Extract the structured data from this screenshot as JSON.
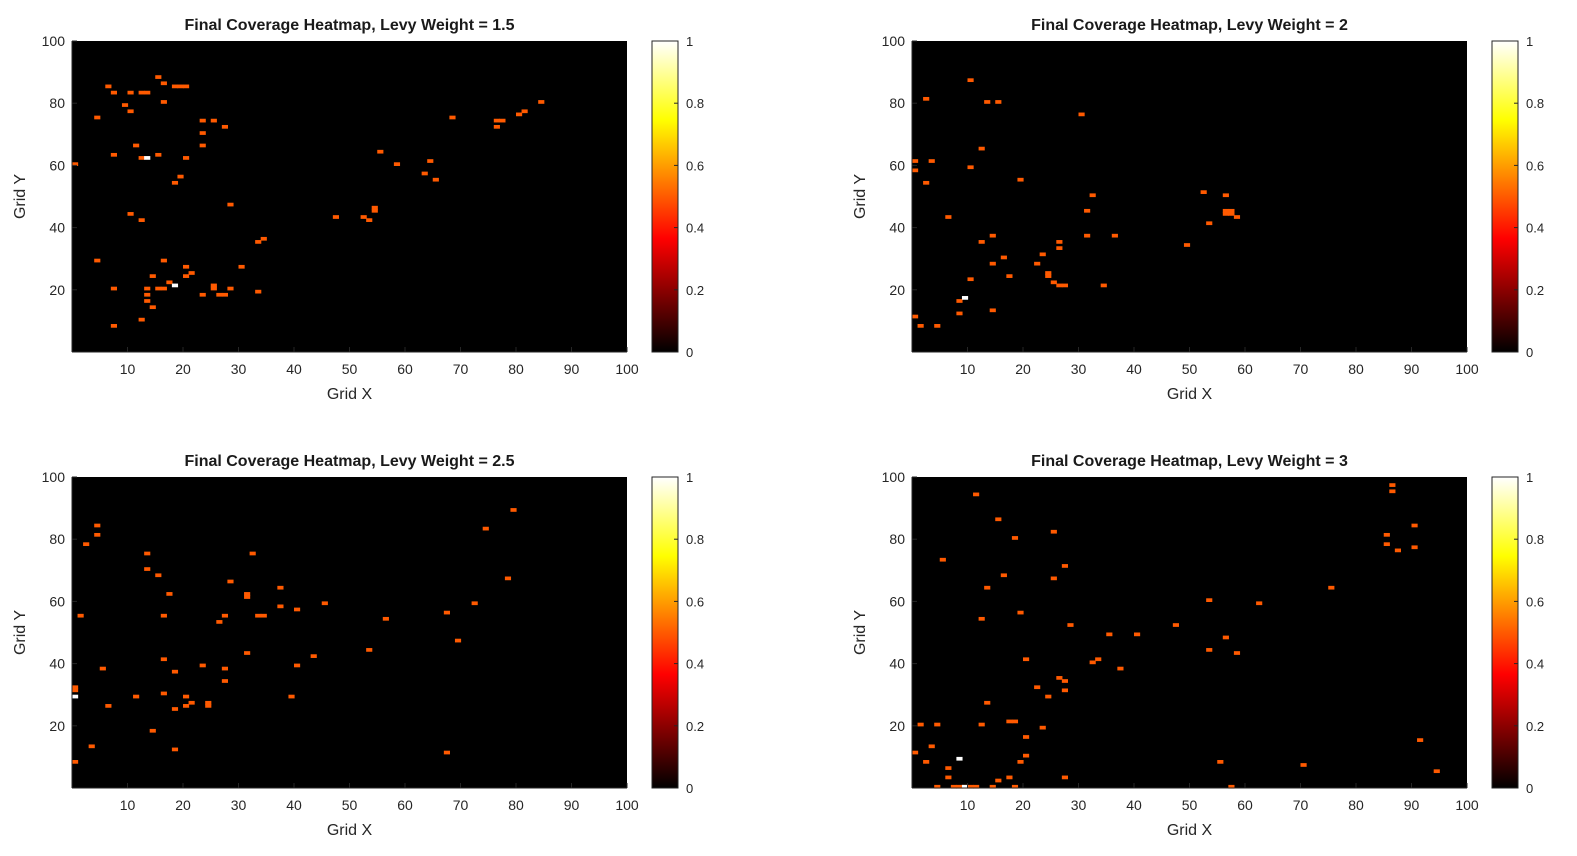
{
  "figure": {
    "colormap": "hot",
    "background": "#ffffff",
    "panel_bg": "#000000",
    "cell_color": "#ff5a00",
    "peak_color": "#ffffff"
  },
  "chart_data": [
    {
      "type": "heatmap",
      "title": "Final Coverage Heatmap, Levy Weight = 1.5",
      "xlabel": "Grid X",
      "ylabel": "Grid Y",
      "xlim": [
        0,
        100
      ],
      "ylim": [
        0,
        100
      ],
      "xticks": [
        "10",
        "20",
        "30",
        "40",
        "50",
        "60",
        "70",
        "80",
        "90",
        "100"
      ],
      "yticks": [
        "20",
        "40",
        "60",
        "80",
        "100"
      ],
      "colorbar": {
        "range": [
          0,
          1
        ],
        "ticks": [
          "0",
          "0.2",
          "0.4",
          "0.6",
          "0.8",
          "1"
        ]
      },
      "grid": false,
      "cells": [
        [
          7,
          86
        ],
        [
          8,
          84
        ],
        [
          10,
          80
        ],
        [
          11,
          84
        ],
        [
          11,
          78
        ],
        [
          13,
          84
        ],
        [
          14,
          84
        ],
        [
          16,
          89
        ],
        [
          17,
          87
        ],
        [
          17,
          81
        ],
        [
          19,
          86
        ],
        [
          20,
          86
        ],
        [
          21,
          86
        ],
        [
          5,
          76
        ],
        [
          1,
          61
        ],
        [
          8,
          64
        ],
        [
          12,
          67
        ],
        [
          13,
          63
        ],
        [
          16,
          64
        ],
        [
          19,
          55
        ],
        [
          20,
          57
        ],
        [
          21,
          63
        ],
        [
          24,
          75
        ],
        [
          24,
          71
        ],
        [
          24,
          67
        ],
        [
          26,
          75
        ],
        [
          28,
          73
        ],
        [
          29,
          48
        ],
        [
          11,
          45
        ],
        [
          13,
          43
        ],
        [
          5,
          30
        ],
        [
          8,
          21
        ],
        [
          8,
          9
        ],
        [
          13,
          11
        ],
        [
          14,
          21
        ],
        [
          14,
          19
        ],
        [
          14,
          17
        ],
        [
          15,
          25
        ],
        [
          15,
          15
        ],
        [
          16,
          21
        ],
        [
          17,
          30
        ],
        [
          17,
          21
        ],
        [
          18,
          23
        ],
        [
          21,
          28
        ],
        [
          21,
          25
        ],
        [
          22,
          26
        ],
        [
          24,
          19
        ],
        [
          26,
          22
        ],
        [
          26,
          21
        ],
        [
          27,
          19
        ],
        [
          28,
          19
        ],
        [
          29,
          21
        ],
        [
          31,
          28
        ],
        [
          34,
          36
        ],
        [
          35,
          37
        ],
        [
          34,
          20
        ],
        [
          48,
          44
        ],
        [
          53,
          44
        ],
        [
          54,
          43
        ],
        [
          55,
          46
        ],
        [
          55,
          47
        ],
        [
          56,
          65
        ],
        [
          59,
          61
        ],
        [
          64,
          58
        ],
        [
          65,
          62
        ],
        [
          66,
          56
        ],
        [
          69,
          76
        ],
        [
          77,
          75
        ],
        [
          78,
          75
        ],
        [
          77,
          73
        ],
        [
          81,
          77
        ],
        [
          82,
          78
        ],
        [
          85,
          81
        ]
      ],
      "peaks": [
        [
          14,
          63,
          1.0
        ],
        [
          19,
          22,
          1.0
        ]
      ]
    },
    {
      "type": "heatmap",
      "title": "Final Coverage Heatmap, Levy Weight = 2",
      "xlabel": "Grid X",
      "ylabel": "Grid Y",
      "xlim": [
        0,
        100
      ],
      "ylim": [
        0,
        100
      ],
      "xticks": [
        "10",
        "20",
        "30",
        "40",
        "50",
        "60",
        "70",
        "80",
        "90",
        "100"
      ],
      "yticks": [
        "20",
        "40",
        "60",
        "80",
        "100"
      ],
      "colorbar": {
        "range": [
          0,
          1
        ],
        "ticks": [
          "0",
          "0.2",
          "0.4",
          "0.6",
          "0.8",
          "1"
        ]
      },
      "grid": false,
      "cells": [
        [
          1,
          62
        ],
        [
          1,
          59
        ],
        [
          1,
          12
        ],
        [
          2,
          9
        ],
        [
          3,
          82
        ],
        [
          3,
          55
        ],
        [
          4,
          62
        ],
        [
          5,
          9
        ],
        [
          7,
          44
        ],
        [
          9,
          13
        ],
        [
          9,
          17
        ],
        [
          11,
          88
        ],
        [
          11,
          60
        ],
        [
          11,
          24
        ],
        [
          13,
          66
        ],
        [
          13,
          36
        ],
        [
          14,
          81
        ],
        [
          15,
          38
        ],
        [
          15,
          29
        ],
        [
          15,
          14
        ],
        [
          16,
          81
        ],
        [
          17,
          31
        ],
        [
          18,
          25
        ],
        [
          20,
          56
        ],
        [
          23,
          29
        ],
        [
          24,
          32
        ],
        [
          25,
          26
        ],
        [
          25,
          25
        ],
        [
          26,
          23
        ],
        [
          27,
          22
        ],
        [
          28,
          22
        ],
        [
          27,
          36
        ],
        [
          27,
          34
        ],
        [
          31,
          77
        ],
        [
          32,
          46
        ],
        [
          32,
          38
        ],
        [
          33,
          51
        ],
        [
          35,
          22
        ],
        [
          37,
          38
        ],
        [
          50,
          35
        ],
        [
          53,
          52
        ],
        [
          54,
          42
        ],
        [
          57,
          51
        ],
        [
          57,
          46
        ],
        [
          57,
          45
        ],
        [
          58,
          46
        ],
        [
          58,
          45
        ],
        [
          59,
          44
        ]
      ],
      "peaks": [
        [
          10,
          18,
          1.0
        ]
      ]
    },
    {
      "type": "heatmap",
      "title": "Final Coverage Heatmap, Levy Weight = 2.5",
      "xlabel": "Grid X",
      "ylabel": "Grid Y",
      "xlim": [
        0,
        100
      ],
      "ylim": [
        0,
        100
      ],
      "xticks": [
        "10",
        "20",
        "30",
        "40",
        "50",
        "60",
        "70",
        "80",
        "90",
        "100"
      ],
      "yticks": [
        "20",
        "40",
        "60",
        "80",
        "100"
      ],
      "colorbar": {
        "range": [
          0,
          1
        ],
        "ticks": [
          "0",
          "0.2",
          "0.4",
          "0.6",
          "0.8",
          "1"
        ]
      },
      "grid": false,
      "cells": [
        [
          1,
          33
        ],
        [
          1,
          32
        ],
        [
          1,
          9
        ],
        [
          2,
          56
        ],
        [
          3,
          79
        ],
        [
          4,
          14
        ],
        [
          5,
          85
        ],
        [
          5,
          82
        ],
        [
          6,
          39
        ],
        [
          7,
          27
        ],
        [
          12,
          30
        ],
        [
          14,
          76
        ],
        [
          14,
          71
        ],
        [
          15,
          19
        ],
        [
          16,
          69
        ],
        [
          17,
          56
        ],
        [
          17,
          42
        ],
        [
          17,
          31
        ],
        [
          18,
          63
        ],
        [
          19,
          38
        ],
        [
          19,
          26
        ],
        [
          19,
          13
        ],
        [
          21,
          30
        ],
        [
          21,
          27
        ],
        [
          22,
          28
        ],
        [
          24,
          40
        ],
        [
          25,
          28
        ],
        [
          25,
          27
        ],
        [
          27,
          54
        ],
        [
          28,
          56
        ],
        [
          28,
          39
        ],
        [
          28,
          35
        ],
        [
          29,
          67
        ],
        [
          32,
          63
        ],
        [
          32,
          62
        ],
        [
          32,
          44
        ],
        [
          33,
          76
        ],
        [
          34,
          56
        ],
        [
          35,
          56
        ],
        [
          38,
          65
        ],
        [
          38,
          59
        ],
        [
          40,
          30
        ],
        [
          41,
          58
        ],
        [
          41,
          40
        ],
        [
          44,
          43
        ],
        [
          46,
          60
        ],
        [
          54,
          45
        ],
        [
          57,
          55
        ],
        [
          68,
          57
        ],
        [
          68,
          12
        ],
        [
          70,
          48
        ],
        [
          73,
          60
        ],
        [
          75,
          84
        ],
        [
          79,
          68
        ],
        [
          80,
          90
        ]
      ],
      "peaks": [
        [
          1,
          30,
          1.0
        ]
      ]
    },
    {
      "type": "heatmap",
      "title": "Final Coverage Heatmap, Levy Weight = 3",
      "xlabel": "Grid X",
      "ylabel": "Grid Y",
      "xlim": [
        0,
        100
      ],
      "ylim": [
        0,
        100
      ],
      "xticks": [
        "10",
        "20",
        "30",
        "40",
        "50",
        "60",
        "70",
        "80",
        "90",
        "100"
      ],
      "yticks": [
        "20",
        "40",
        "60",
        "80",
        "100"
      ],
      "colorbar": {
        "range": [
          0,
          1
        ],
        "ticks": [
          "0",
          "0.2",
          "0.4",
          "0.6",
          "0.8",
          "1"
        ]
      },
      "grid": false,
      "cells": [
        [
          1,
          12
        ],
        [
          2,
          21
        ],
        [
          3,
          9
        ],
        [
          4,
          14
        ],
        [
          5,
          21
        ],
        [
          5,
          1
        ],
        [
          6,
          74
        ],
        [
          7,
          7
        ],
        [
          7,
          4
        ],
        [
          8,
          1
        ],
        [
          9,
          1
        ],
        [
          10,
          1
        ],
        [
          11,
          1
        ],
        [
          12,
          95
        ],
        [
          12,
          1
        ],
        [
          13,
          21
        ],
        [
          13,
          55
        ],
        [
          14,
          65
        ],
        [
          14,
          28
        ],
        [
          15,
          1
        ],
        [
          16,
          87
        ],
        [
          16,
          3
        ],
        [
          17,
          69
        ],
        [
          18,
          22
        ],
        [
          18,
          4
        ],
        [
          19,
          81
        ],
        [
          19,
          22
        ],
        [
          19,
          1
        ],
        [
          20,
          57
        ],
        [
          20,
          9
        ],
        [
          21,
          17
        ],
        [
          21,
          42
        ],
        [
          21,
          11
        ],
        [
          23,
          33
        ],
        [
          24,
          20
        ],
        [
          25,
          30
        ],
        [
          26,
          83
        ],
        [
          26,
          68
        ],
        [
          27,
          36
        ],
        [
          28,
          72
        ],
        [
          28,
          35
        ],
        [
          28,
          32
        ],
        [
          28,
          4
        ],
        [
          29,
          53
        ],
        [
          33,
          41
        ],
        [
          34,
          42
        ],
        [
          36,
          50
        ],
        [
          38,
          39
        ],
        [
          41,
          50
        ],
        [
          48,
          53
        ],
        [
          54,
          61
        ],
        [
          54,
          45
        ],
        [
          56,
          9
        ],
        [
          57,
          49
        ],
        [
          58,
          1
        ],
        [
          59,
          44
        ],
        [
          63,
          60
        ],
        [
          71,
          8
        ],
        [
          76,
          65
        ],
        [
          86,
          82
        ],
        [
          86,
          79
        ],
        [
          87,
          98
        ],
        [
          87,
          96
        ],
        [
          88,
          77
        ],
        [
          91,
          85
        ],
        [
          91,
          78
        ],
        [
          92,
          16
        ],
        [
          95,
          6
        ]
      ],
      "peaks": [
        [
          9,
          10,
          1.0
        ],
        [
          10,
          1,
          1.0
        ]
      ]
    }
  ]
}
